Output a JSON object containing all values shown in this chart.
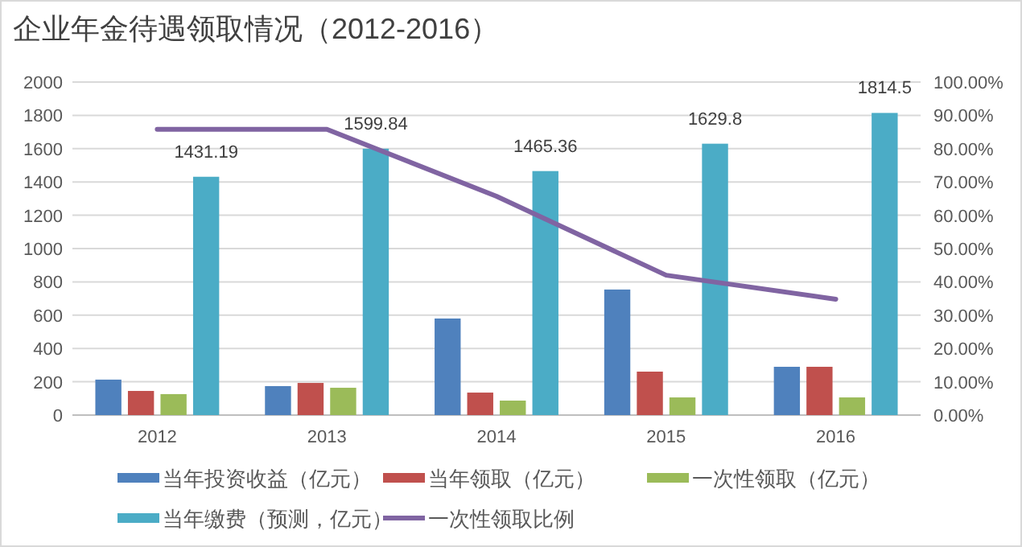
{
  "chart_data": {
    "type": "bar",
    "title": "企业年金待遇领取情况（2012-2016）",
    "categories": [
      "2012",
      "2013",
      "2014",
      "2015",
      "2016"
    ],
    "series": [
      {
        "name": "当年投资收益（亿元）",
        "color": "#4f81bd",
        "values": [
          213,
          174,
          580,
          754,
          290
        ]
      },
      {
        "name": "当年领取（亿元）",
        "color": "#c0504d",
        "values": [
          145,
          193,
          135,
          261,
          290
        ]
      },
      {
        "name": "一次性领取（亿元）",
        "color": "#9bbb59",
        "values": [
          126,
          164,
          87,
          106,
          106
        ]
      },
      {
        "name": "当年缴费（预测，亿元）",
        "color": "#4bacc6",
        "values": [
          1431.19,
          1599.84,
          1465.36,
          1629.8,
          1814.5
        ],
        "value_labels": [
          "1431.19",
          "1599.84",
          "1465.36",
          "1629.8",
          "1814.5"
        ]
      },
      {
        "name": "一次性领取比例",
        "color": "#8064a2",
        "type": "line",
        "axis": "y2",
        "values": [
          85.8,
          85.8,
          65.7,
          42,
          34.8
        ]
      }
    ],
    "ylim": [
      0,
      2000
    ],
    "yticks": [
      0,
      200,
      400,
      600,
      800,
      1000,
      1200,
      1400,
      1600,
      1800,
      2000
    ],
    "y2lim": [
      0,
      100
    ],
    "y2ticks": [
      {
        "value": 0,
        "label": "0.00%"
      },
      {
        "value": 10,
        "label": "10.00%"
      },
      {
        "value": 20,
        "label": "20.00%"
      },
      {
        "value": 30,
        "label": "30.00%"
      },
      {
        "value": 40,
        "label": "40.00%"
      },
      {
        "value": 50,
        "label": "50.00%"
      },
      {
        "value": 60,
        "label": "60.00%"
      },
      {
        "value": 70,
        "label": "70.00%"
      },
      {
        "value": 80,
        "label": "80.00%"
      },
      {
        "value": 90,
        "label": "90.00%"
      },
      {
        "value": 100,
        "label": "100.00%"
      }
    ],
    "grid": "y",
    "legend": "bottom",
    "marker": "none"
  }
}
